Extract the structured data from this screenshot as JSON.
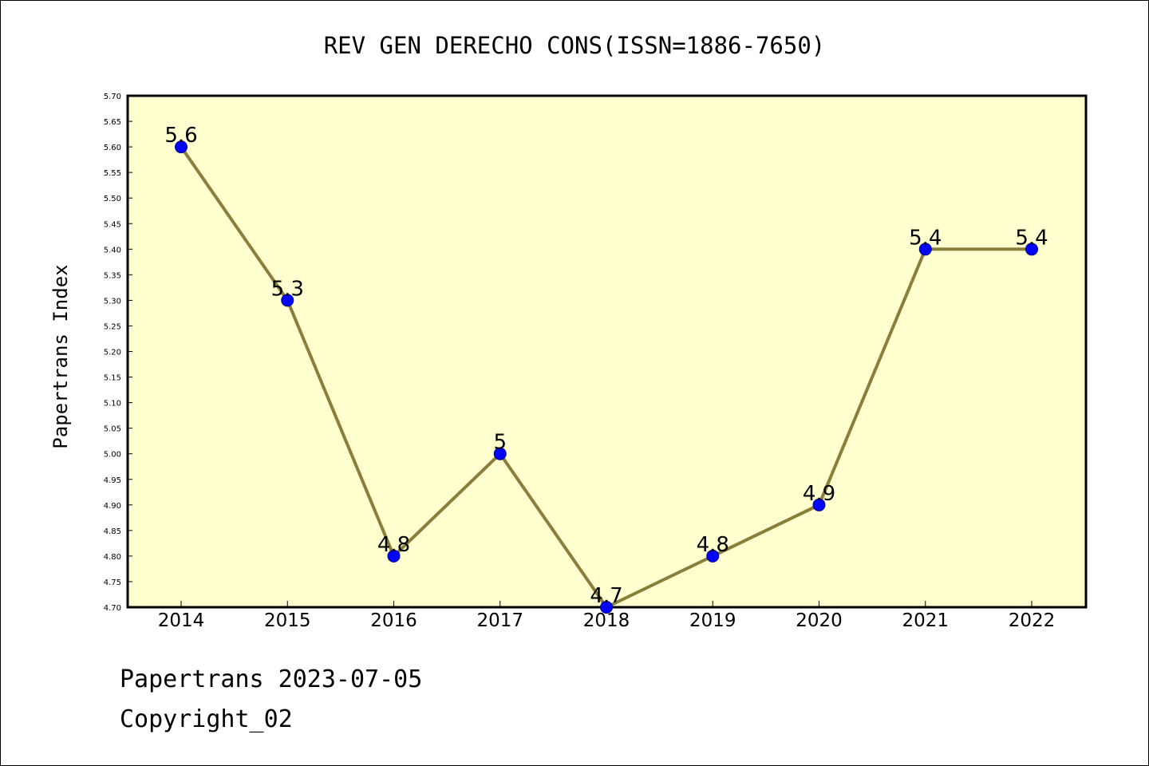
{
  "chart_data": {
    "type": "line",
    "title": "REV GEN DERECHO CONS(ISSN=1886-7650)",
    "xlabel": "",
    "ylabel": "Papertrans Index",
    "categories": [
      "2014",
      "2015",
      "2016",
      "2017",
      "2018",
      "2019",
      "2020",
      "2021",
      "2022"
    ],
    "series": [
      {
        "values": [
          5.6,
          5.3,
          4.8,
          5.0,
          4.7,
          4.8,
          4.9,
          5.4,
          5.4
        ],
        "data_labels": [
          "5.6",
          "5.3",
          "4.8",
          "5",
          "4.7",
          "4.8",
          "4.9",
          "5.4",
          "5.4"
        ]
      }
    ],
    "ylim": [
      4.7,
      5.7
    ],
    "yticks": [
      "4.70",
      "4.75",
      "4.80",
      "4.85",
      "4.90",
      "4.95",
      "5.00",
      "5.05",
      "5.10",
      "5.15",
      "5.20",
      "5.25",
      "5.30",
      "5.35",
      "5.40",
      "5.45",
      "5.50",
      "5.55",
      "5.60",
      "5.65",
      "5.70"
    ],
    "grid": false,
    "legend": "none",
    "colors": {
      "plot_background": "#ffffd0",
      "line": "#8b7d3a",
      "marker": "#0000ff",
      "axis": "#000000"
    }
  },
  "footer": {
    "line1": "Papertrans 2023-07-05",
    "line2": "Copyright_02"
  }
}
